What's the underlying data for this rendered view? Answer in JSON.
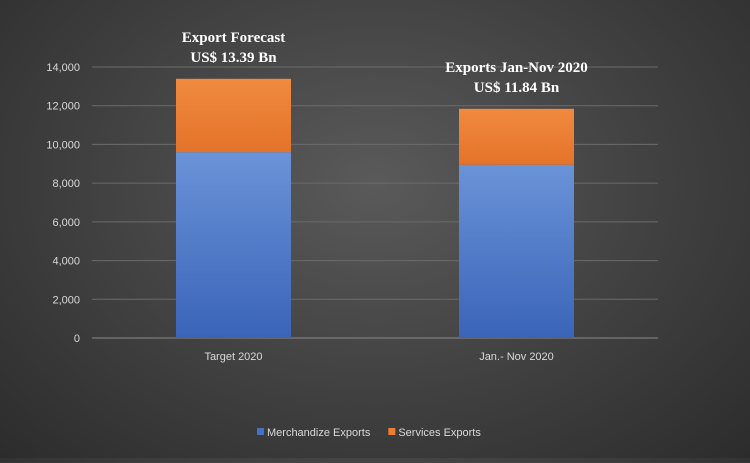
{
  "chart_data": {
    "type": "bar",
    "stacked": true,
    "title": "",
    "xlabel": "",
    "ylabel": "",
    "categories": [
      "Target 2020",
      "Jan.- Nov 2020"
    ],
    "series": [
      {
        "name": "Merchandize Exports",
        "values": [
          9600,
          8950
        ],
        "color": "#4472c4"
      },
      {
        "name": "Services Exports",
        "values": [
          3790,
          2890
        ],
        "color": "#ed7d31"
      }
    ],
    "ylim": [
      0,
      14000
    ],
    "yticks": [
      0,
      2000,
      4000,
      6000,
      8000,
      10000,
      12000,
      14000
    ],
    "ytick_labels": [
      "0",
      "2,000",
      "4,000",
      "6,000",
      "8,000",
      "10,000",
      "12,000",
      "14,000"
    ],
    "grid": true,
    "legend_position": "bottom",
    "annotations": [
      {
        "category": "Target 2020",
        "line1": "Export Forecast",
        "line2": "US$ 13.39 Bn"
      },
      {
        "category": "Jan.- Nov 2020",
        "line1": "Exports Jan-Nov 2020",
        "line2": "US$ 11.84 Bn"
      }
    ]
  }
}
